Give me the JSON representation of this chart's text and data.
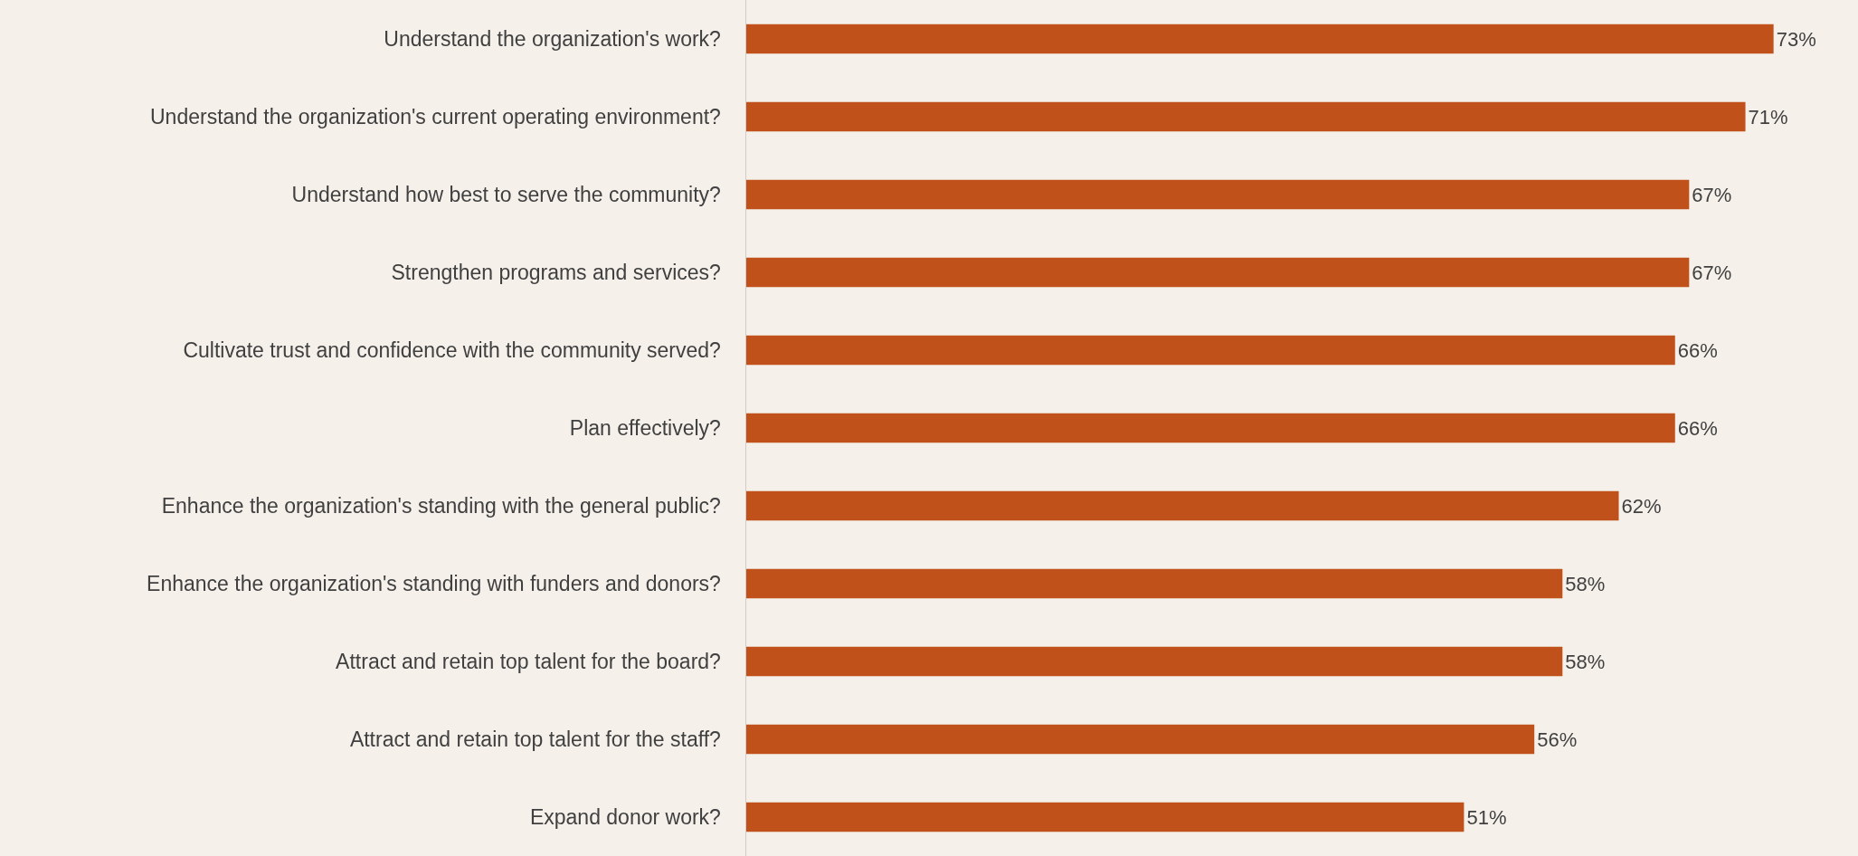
{
  "chart_data": {
    "type": "bar",
    "orientation": "horizontal",
    "categories": [
      "Understand the organization's work?",
      "Understand the organization's current operating environment?",
      "Understand how best to serve the community?",
      "Strengthen programs and services?",
      "Cultivate trust and confidence with the community served?",
      "Plan effectively?",
      "Enhance the organization's standing with the general public?",
      "Enhance the organization's standing with funders and donors?",
      "Attract and retain top talent for the board?",
      "Attract and retain top talent for the staff?",
      "Expand donor work?"
    ],
    "values": [
      73,
      71,
      67,
      67,
      66,
      66,
      62,
      58,
      58,
      56,
      51
    ],
    "value_labels": [
      "73%",
      "71%",
      "67%",
      "67%",
      "66%",
      "66%",
      "62%",
      "58%",
      "58%",
      "56%",
      "51%"
    ],
    "color": "#c0511a",
    "xlim": [
      0,
      79
    ],
    "grid": false,
    "legend": false
  }
}
